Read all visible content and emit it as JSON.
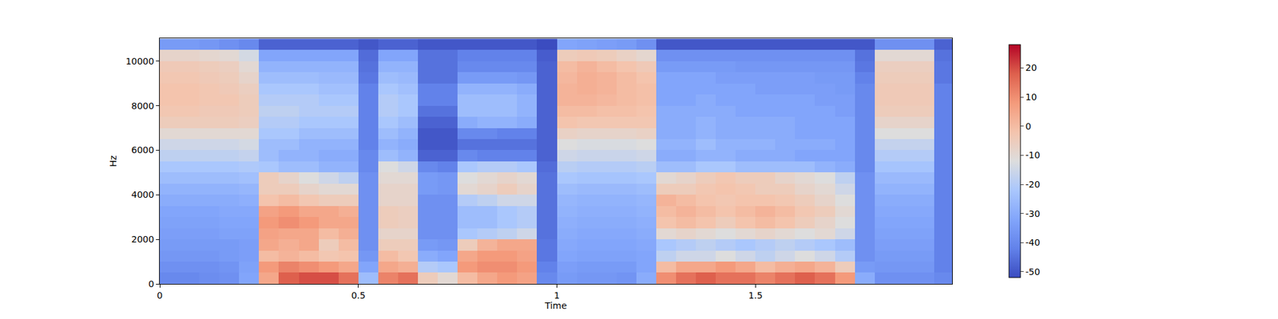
{
  "chart_data": {
    "type": "heatmap",
    "x_label": "Time",
    "y_label": "Hz",
    "x": [
      0.025,
      0.075,
      0.125,
      0.175,
      0.225,
      0.275,
      0.325,
      0.375,
      0.425,
      0.475,
      0.525,
      0.575,
      0.625,
      0.675,
      0.725,
      0.775,
      0.825,
      0.875,
      0.925,
      0.975,
      1.025,
      1.075,
      1.125,
      1.175,
      1.225,
      1.275,
      1.325,
      1.375,
      1.425,
      1.475,
      1.525,
      1.575,
      1.625,
      1.675,
      1.725,
      1.775,
      1.825,
      1.875,
      1.925,
      1.975
    ],
    "y": [
      250,
      750,
      1250,
      1750,
      2250,
      2750,
      3250,
      3750,
      4250,
      4750,
      5250,
      5750,
      6250,
      6750,
      7250,
      7750,
      8250,
      8750,
      9250,
      9750,
      10250,
      10750
    ],
    "z": [
      [
        -40,
        -40,
        -39,
        -38,
        -32,
        5,
        18,
        20,
        20,
        15,
        -25,
        12,
        15,
        -5,
        -10,
        0,
        5,
        8,
        6,
        -40,
        -35,
        -36,
        -36,
        -37,
        -30,
        10,
        15,
        18,
        15,
        15,
        12,
        15,
        18,
        15,
        8,
        -30,
        -38,
        -38,
        -38,
        -40
      ],
      [
        -38,
        -38,
        -38,
        -37,
        -33,
        8,
        12,
        10,
        8,
        5,
        -32,
        5,
        3,
        -20,
        -22,
        8,
        10,
        10,
        8,
        -42,
        -34,
        -35,
        -35,
        -35,
        -32,
        0,
        5,
        5,
        8,
        5,
        0,
        3,
        5,
        2,
        -5,
        -35,
        -36,
        -36,
        -36,
        -42
      ],
      [
        -36,
        -36,
        -36,
        -35,
        -34,
        0,
        2,
        0,
        -3,
        -2,
        -36,
        0,
        -3,
        -30,
        -32,
        5,
        8,
        8,
        6,
        -44,
        -32,
        -33,
        -33,
        -33,
        -32,
        -18,
        -15,
        -15,
        -12,
        -15,
        -18,
        -15,
        -12,
        -15,
        -20,
        -38,
        -35,
        -35,
        -35,
        -42
      ],
      [
        -35,
        -35,
        -35,
        -35,
        -34,
        5,
        3,
        5,
        -5,
        0,
        -38,
        -5,
        -5,
        -35,
        -36,
        -5,
        2,
        5,
        5,
        -44,
        -31,
        -32,
        -32,
        -32,
        -31,
        -22,
        -20,
        -18,
        -20,
        -22,
        -20,
        -18,
        -20,
        -22,
        -25,
        -38,
        -34,
        -34,
        -34,
        -42
      ],
      [
        -34,
        -34,
        -34,
        -33,
        -33,
        6,
        5,
        5,
        0,
        3,
        -38,
        -8,
        -8,
        -38,
        -38,
        -22,
        -20,
        -18,
        -15,
        -45,
        -30,
        -31,
        -31,
        -31,
        -30,
        -10,
        -8,
        -10,
        -12,
        -10,
        -8,
        -10,
        -12,
        -10,
        -15,
        -38,
        -33,
        -33,
        -33,
        -42
      ],
      [
        -33,
        -33,
        -33,
        -32,
        -32,
        8,
        10,
        8,
        5,
        5,
        -38,
        -5,
        -6,
        -38,
        -38,
        -25,
        -25,
        -22,
        -20,
        -45,
        -29,
        -30,
        -30,
        -30,
        -29,
        -2,
        0,
        -2,
        -5,
        -2,
        0,
        -2,
        -5,
        -8,
        -12,
        -38,
        -32,
        -32,
        -32,
        -42
      ],
      [
        -32,
        -32,
        -32,
        -31,
        -31,
        6,
        8,
        5,
        5,
        3,
        -38,
        -5,
        -6,
        -38,
        -38,
        -25,
        -25,
        -22,
        -20,
        -45,
        -28,
        -29,
        -29,
        -29,
        -28,
        0,
        2,
        0,
        -2,
        0,
        2,
        0,
        -3,
        -5,
        -10,
        -38,
        -31,
        -31,
        -31,
        -42
      ],
      [
        -30,
        -30,
        -30,
        -30,
        -29,
        -2,
        0,
        -3,
        -5,
        -5,
        -38,
        -8,
        -8,
        -38,
        -38,
        -20,
        -18,
        -15,
        -15,
        -45,
        -27,
        -28,
        -28,
        -28,
        -27,
        2,
        0,
        -2,
        -3,
        -2,
        -2,
        -3,
        -5,
        -8,
        -12,
        -38,
        -30,
        -30,
        -30,
        -42
      ],
      [
        -28,
        -28,
        -28,
        -28,
        -27,
        -5,
        -5,
        -8,
        -10,
        -10,
        -38,
        -8,
        -8,
        -35,
        -36,
        -10,
        -8,
        -5,
        -8,
        -45,
        -25,
        -26,
        -26,
        -26,
        -25,
        -5,
        -5,
        -3,
        -2,
        -3,
        -5,
        -5,
        -8,
        -10,
        -15,
        -38,
        -28,
        -28,
        -28,
        -42
      ],
      [
        -25,
        -25,
        -25,
        -25,
        -24,
        -5,
        -8,
        -12,
        -15,
        -18,
        -38,
        -10,
        -10,
        -35,
        -36,
        -12,
        -10,
        -8,
        -10,
        -45,
        -22,
        -23,
        -23,
        -23,
        -22,
        -10,
        -8,
        -5,
        -3,
        -5,
        -5,
        -8,
        -10,
        -12,
        -18,
        -38,
        -26,
        -26,
        -26,
        -42
      ],
      [
        -22,
        -22,
        -22,
        -22,
        -21,
        -22,
        -25,
        -25,
        -28,
        -28,
        -40,
        -12,
        -15,
        -40,
        -42,
        -22,
        -20,
        -20,
        -22,
        -46,
        -19,
        -20,
        -20,
        -20,
        -19,
        -25,
        -25,
        -22,
        -22,
        -25,
        -25,
        -25,
        -25,
        -28,
        -30,
        -40,
        -23,
        -23,
        -23,
        -42
      ],
      [
        -18,
        -18,
        -18,
        -18,
        -17,
        -25,
        -28,
        -28,
        -30,
        -30,
        -40,
        -25,
        -28,
        -48,
        -48,
        -40,
        -42,
        -42,
        -42,
        -48,
        -15,
        -16,
        -16,
        -16,
        -15,
        -30,
        -30,
        -28,
        -28,
        -30,
        -30,
        -30,
        -32,
        -32,
        -32,
        -40,
        -20,
        -20,
        -20,
        -42
      ],
      [
        -15,
        -15,
        -15,
        -15,
        -14,
        -25,
        -25,
        -28,
        -28,
        -28,
        -42,
        -28,
        -30,
        -50,
        -50,
        -45,
        -45,
        -45,
        -45,
        -48,
        -12,
        -13,
        -13,
        -13,
        -12,
        -28,
        -28,
        -25,
        -28,
        -28,
        -28,
        -30,
        -30,
        -30,
        -32,
        -40,
        -17,
        -17,
        -17,
        -42
      ],
      [
        -10,
        -10,
        -10,
        -10,
        -10,
        -22,
        -22,
        -25,
        -25,
        -25,
        -42,
        -25,
        -28,
        -50,
        -50,
        -40,
        -40,
        -42,
        -42,
        -48,
        -7,
        -8,
        -8,
        -8,
        -7,
        -30,
        -30,
        -28,
        -30,
        -30,
        -30,
        -30,
        -32,
        -32,
        -32,
        -40,
        -12,
        -12,
        -12,
        -42
      ],
      [
        -5,
        -5,
        -5,
        -5,
        -6,
        -20,
        -20,
        -22,
        -22,
        -22,
        -42,
        -22,
        -25,
        -48,
        -48,
        -30,
        -28,
        -28,
        -30,
        -48,
        -2,
        -3,
        -3,
        -3,
        -3,
        -30,
        -30,
        -28,
        -30,
        -30,
        -30,
        -30,
        -32,
        -32,
        -32,
        -40,
        -8,
        -8,
        -8,
        -42
      ],
      [
        -3,
        -3,
        -4,
        -4,
        -5,
        -18,
        -18,
        -20,
        -20,
        -20,
        -42,
        -20,
        -22,
        -45,
        -45,
        -25,
        -25,
        -25,
        -28,
        -48,
        0,
        0,
        -1,
        -1,
        -2,
        -30,
        -30,
        -30,
        -30,
        -32,
        -32,
        -32,
        -32,
        -32,
        -34,
        -40,
        -5,
        -5,
        -5,
        -42
      ],
      [
        -2,
        -2,
        -3,
        -3,
        -5,
        -20,
        -20,
        -20,
        -22,
        -22,
        -42,
        -20,
        -22,
        -42,
        -42,
        -25,
        -25,
        -25,
        -28,
        -48,
        2,
        2,
        1,
        0,
        -1,
        -32,
        -32,
        -30,
        -32,
        -32,
        -32,
        -32,
        -32,
        -34,
        -34,
        -40,
        -4,
        -4,
        -4,
        -42
      ],
      [
        -2,
        -2,
        -3,
        -4,
        -6,
        -22,
        -22,
        -22,
        -24,
        -24,
        -42,
        -22,
        -24,
        -42,
        -42,
        -28,
        -28,
        -28,
        -30,
        -48,
        2,
        3,
        2,
        0,
        -1,
        -32,
        -32,
        -32,
        -32,
        -32,
        -34,
        -34,
        -34,
        -34,
        -35,
        -40,
        -4,
        -4,
        -4,
        -42
      ],
      [
        -3,
        -3,
        -4,
        -5,
        -8,
        -25,
        -25,
        -25,
        -26,
        -26,
        -44,
        -25,
        -26,
        -45,
        -45,
        -35,
        -35,
        -35,
        -36,
        -48,
        1,
        3,
        2,
        0,
        -2,
        -32,
        -32,
        -32,
        -34,
        -34,
        -34,
        -34,
        -34,
        -35,
        -35,
        -42,
        -5,
        -5,
        -5,
        -44
      ],
      [
        -4,
        -4,
        -5,
        -6,
        -10,
        -28,
        -28,
        -28,
        -28,
        -28,
        -45,
        -28,
        -28,
        -45,
        -45,
        -40,
        -40,
        -40,
        -40,
        -48,
        0,
        2,
        0,
        -2,
        -4,
        -35,
        -35,
        -35,
        -35,
        -36,
        -36,
        -36,
        -36,
        -36,
        -36,
        -44,
        -6,
        -6,
        -6,
        -44
      ],
      [
        -8,
        -8,
        -9,
        -10,
        -14,
        -32,
        -32,
        -32,
        -32,
        -32,
        -46,
        -32,
        -32,
        -45,
        -45,
        -42,
        -42,
        -42,
        -42,
        -49,
        -5,
        -4,
        -5,
        -7,
        -9,
        -38,
        -38,
        -38,
        -38,
        -38,
        -38,
        -38,
        -38,
        -38,
        -38,
        -45,
        -10,
        -10,
        -10,
        -45
      ],
      [
        -35,
        -35,
        -36,
        -38,
        -40,
        -48,
        -48,
        -48,
        -48,
        -48,
        -50,
        -48,
        -48,
        -50,
        -50,
        -50,
        -50,
        -50,
        -50,
        -52,
        -32,
        -33,
        -34,
        -35,
        -38,
        -50,
        -50,
        -50,
        -50,
        -50,
        -50,
        -50,
        -50,
        -50,
        -50,
        -50,
        -38,
        -38,
        -38,
        -48
      ]
    ],
    "xlim": [
      0,
      1.995
    ],
    "ylim": [
      0,
      11025
    ],
    "xticks": [
      0,
      0.5,
      1,
      1.5
    ],
    "yticks": [
      0,
      2000,
      4000,
      6000,
      8000,
      10000
    ],
    "colorbar_range": [
      -52,
      28
    ],
    "colorbar_ticks": [
      -50,
      -40,
      -30,
      -20,
      -10,
      0,
      10,
      20
    ]
  }
}
